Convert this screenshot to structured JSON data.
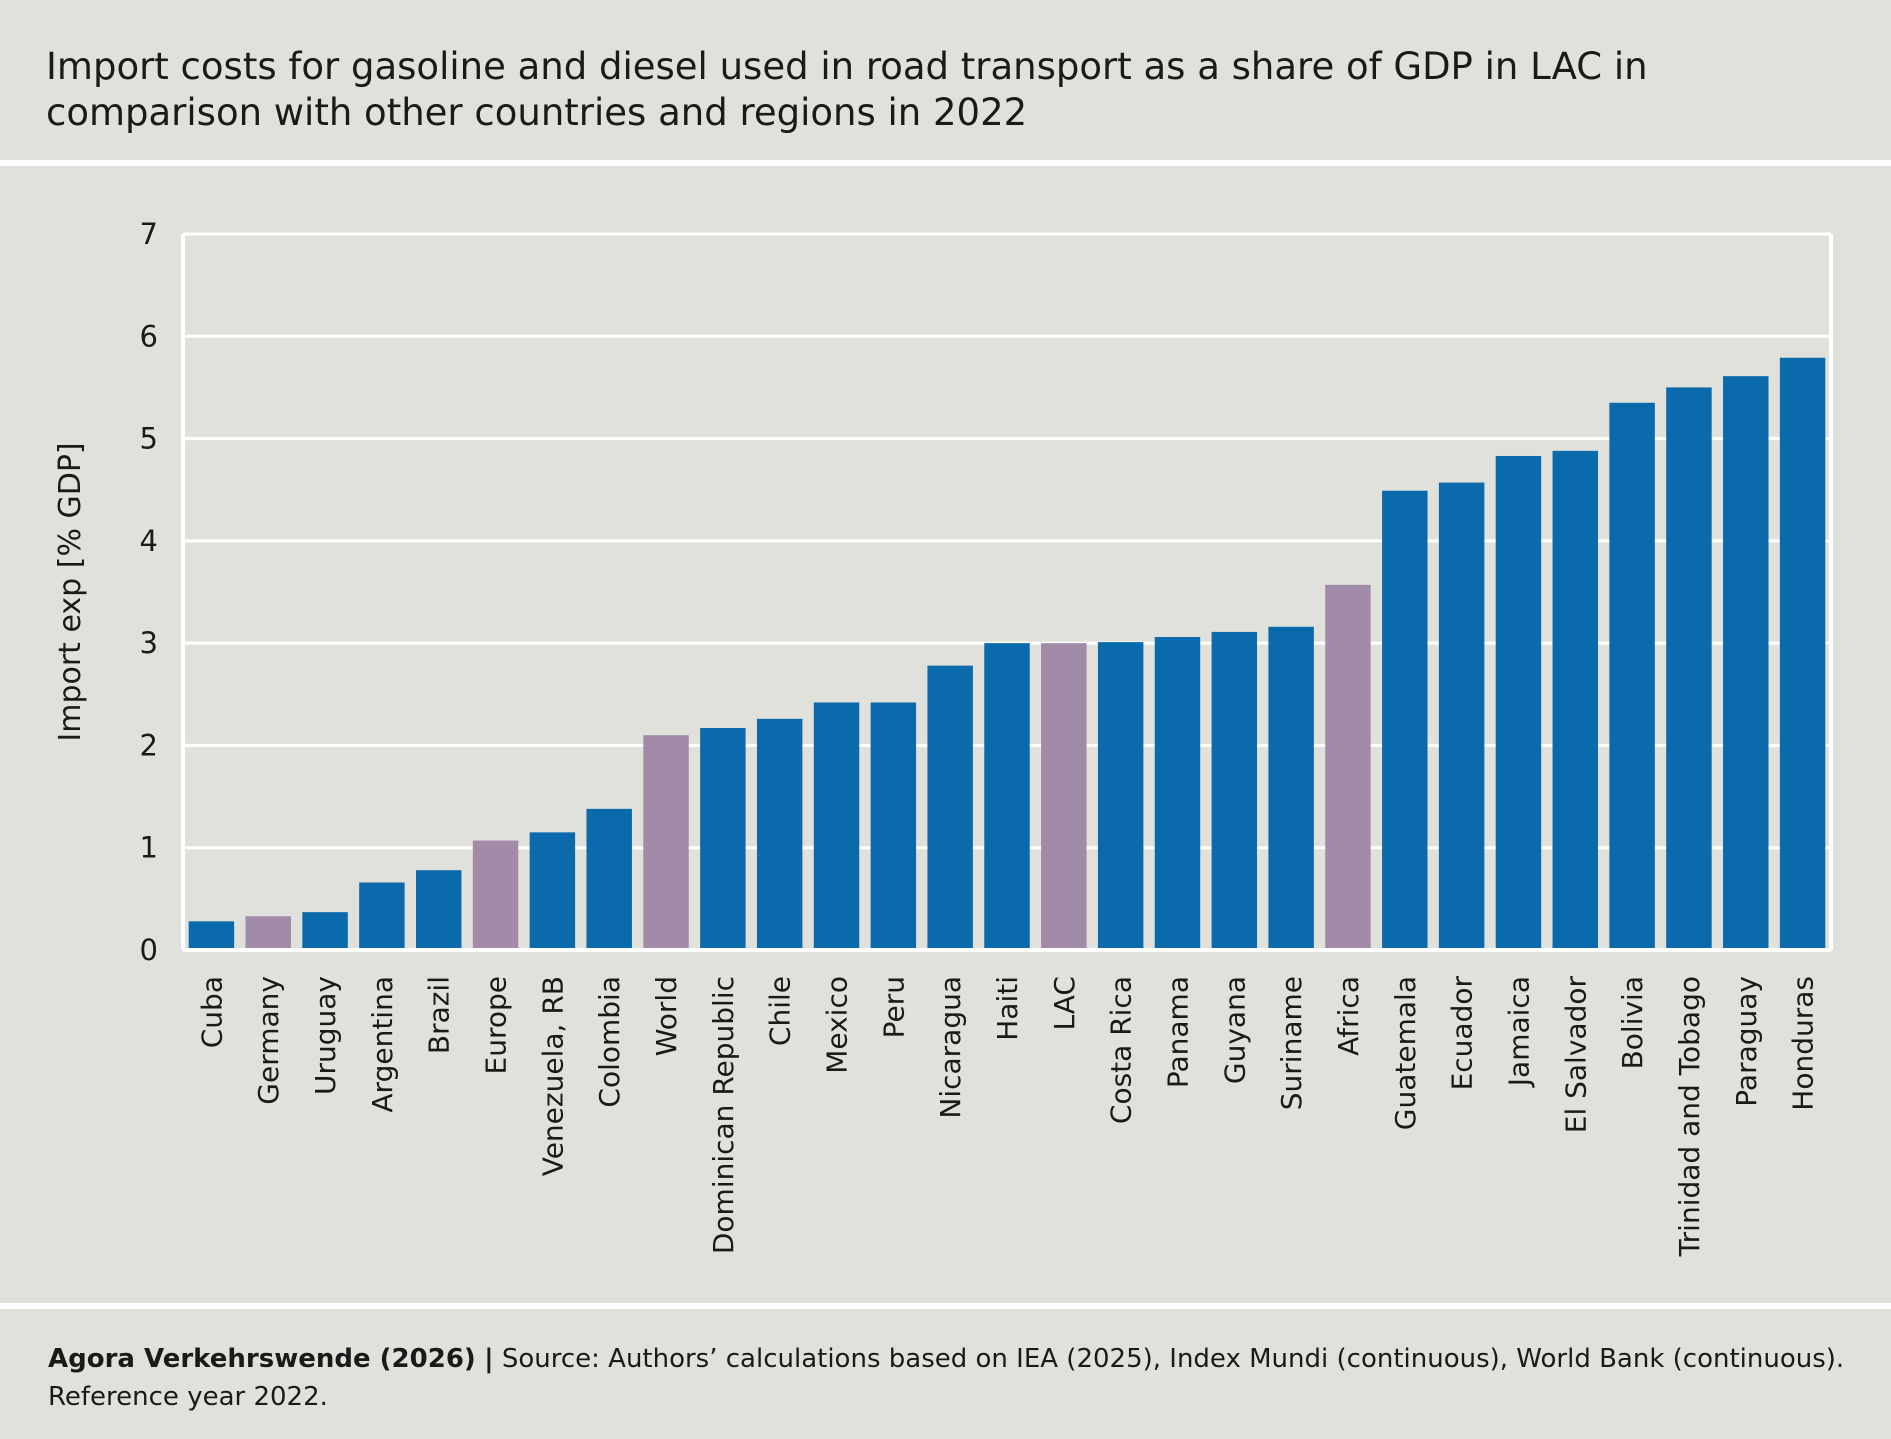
{
  "title": "Import costs for gasoline and diesel used in road transport as a share of GDP in LAC in comparison with other countries and regions in 2022",
  "footer": {
    "brand": "Agora Verkehrswende (2026)",
    "separator": "|",
    "source": "Source: Authors’ calculations based on IEA (2025), Index Mundi (continuous), World Bank (continuous). Reference year 2022."
  },
  "colors": {
    "background": "#e1e1dc",
    "country": "#0a6aac",
    "region": "#a28ba9",
    "grid": "#ffffff"
  },
  "chart_data": {
    "type": "bar",
    "title": "",
    "xlabel": "",
    "ylabel": "Import exp [% GDP]",
    "ylim": [
      0,
      7
    ],
    "yticks": [
      0,
      1,
      2,
      3,
      4,
      5,
      6,
      7
    ],
    "grid": true,
    "categories": [
      "Cuba",
      "Germany",
      "Uruguay",
      "Argentina",
      "Brazil",
      "Europe",
      "Venezuela, RB",
      "Colombia",
      "World",
      "Dominican Republic",
      "Chile",
      "Mexico",
      "Peru",
      "Nicaragua",
      "Haiti",
      "LAC",
      "Costa Rica",
      "Panama",
      "Guyana",
      "Suriname",
      "Africa",
      "Guatemala",
      "Ecuador",
      "Jamaica",
      "El Salvador",
      "Bolivia",
      "Trinidad and Tobago",
      "Paraguay",
      "Honduras"
    ],
    "values": [
      0.28,
      0.33,
      0.37,
      0.66,
      0.78,
      1.07,
      1.15,
      1.38,
      2.1,
      2.17,
      2.26,
      2.42,
      2.42,
      2.78,
      3.0,
      3.0,
      3.01,
      3.06,
      3.11,
      3.16,
      3.57,
      4.49,
      4.57,
      4.83,
      4.88,
      5.35,
      5.5,
      5.61,
      5.79
    ],
    "highlight": [
      "country",
      "region",
      "country",
      "country",
      "country",
      "region",
      "country",
      "country",
      "region",
      "country",
      "country",
      "country",
      "country",
      "country",
      "country",
      "region",
      "country",
      "country",
      "country",
      "country",
      "region",
      "country",
      "country",
      "country",
      "country",
      "country",
      "country",
      "country",
      "country"
    ]
  }
}
